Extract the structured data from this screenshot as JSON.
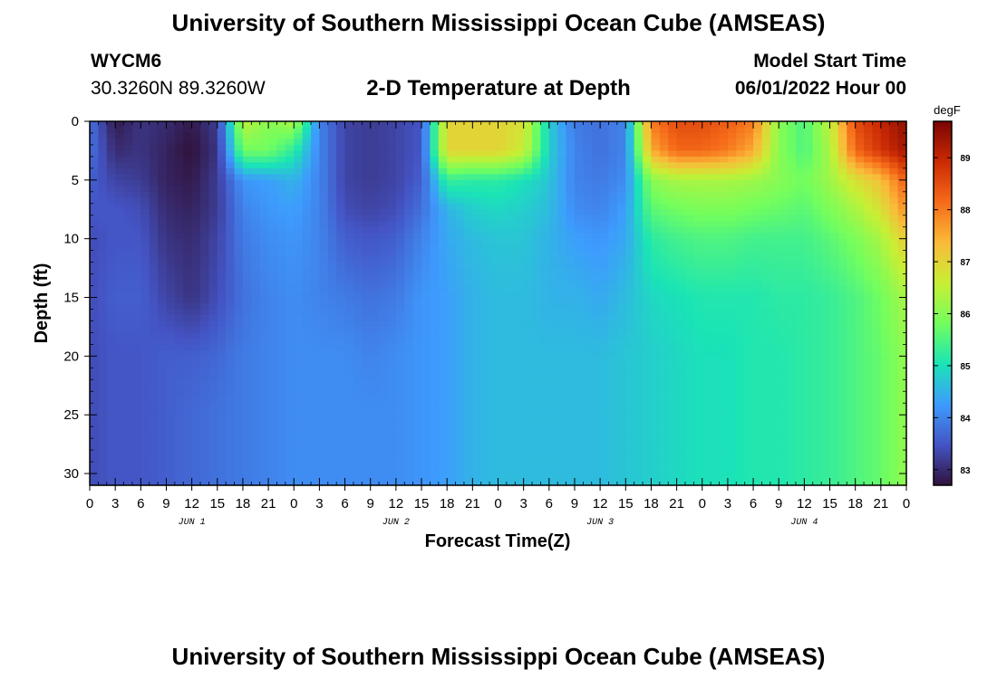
{
  "titles": {
    "main": "University of Southern Mississippi Ocean Cube (AMSEAS)",
    "repeat": "University of Southern Mississippi Ocean Cube (AMSEAS)"
  },
  "station": {
    "id": "WYCM6",
    "coords": "30.3260N  89.3260W"
  },
  "model": {
    "label": "Model Start Time",
    "start": "06/01/2022 Hour 00"
  },
  "chart_data": {
    "type": "heatmap",
    "title": "2-D Temperature at Depth",
    "xlabel": "Forecast Time(Z)",
    "ylabel": "Depth (ft)",
    "x_range_hours": [
      0,
      96
    ],
    "x_tick_labels": [
      "0",
      "3",
      "6",
      "9",
      "12",
      "15",
      "18",
      "21",
      "0",
      "3",
      "6",
      "9",
      "12",
      "15",
      "18",
      "21",
      "0",
      "3",
      "6",
      "9",
      "12",
      "15",
      "18",
      "21",
      "0",
      "3",
      "6",
      "9",
      "12",
      "15",
      "18",
      "21",
      "0"
    ],
    "day_labels": [
      "JUN 1",
      "JUN 2",
      "JUN 3",
      "JUN 4"
    ],
    "y_range_ft": [
      0,
      31
    ],
    "y_ticks": [
      0,
      5,
      10,
      15,
      20,
      25,
      30
    ],
    "colorbar": {
      "unit": "degF",
      "range": [
        82.7,
        89.7
      ],
      "ticks": [
        83,
        84,
        85,
        86,
        87,
        88,
        89
      ],
      "stops": [
        "#30123b",
        "#4454c4",
        "#3e9bfe",
        "#1ae4b6",
        "#72fe5e",
        "#c8ef34",
        "#faba39",
        "#f66b19",
        "#cb2a04",
        "#7a0403"
      ]
    },
    "depths_ft": [
      0,
      2.5,
      5,
      7.5,
      10,
      15,
      20,
      25,
      31
    ],
    "times_h": [
      0,
      3,
      6,
      9,
      12,
      15,
      18,
      21,
      24,
      27,
      30,
      33,
      36,
      39,
      42,
      45,
      48,
      51,
      54,
      57,
      60,
      63,
      66,
      69,
      72,
      75,
      78,
      81,
      84,
      87,
      90,
      93,
      96
    ],
    "values_degF": [
      [
        83.8,
        82.8,
        83.1,
        83.0,
        82.8,
        83.2,
        86.5,
        86.0,
        86.3,
        84.0,
        83.3,
        83.2,
        83.3,
        83.5,
        87.0,
        87.0,
        87.0,
        86.8,
        84.8,
        83.9,
        83.8,
        84.0,
        88.0,
        88.5,
        88.5,
        88.3,
        88.0,
        86.0,
        85.5,
        86.5,
        88.5,
        89.0,
        89.5
      ],
      [
        83.8,
        83.0,
        83.1,
        82.9,
        82.7,
        83.1,
        85.8,
        85.8,
        85.2,
        84.0,
        83.3,
        83.2,
        83.3,
        83.5,
        87.0,
        87.0,
        87.0,
        86.6,
        84.8,
        84.0,
        83.8,
        84.0,
        87.5,
        88.2,
        88.2,
        88.0,
        87.5,
        86.0,
        85.5,
        86.3,
        88.2,
        88.8,
        89.3
      ],
      [
        83.6,
        83.3,
        83.2,
        82.9,
        82.8,
        83.2,
        84.2,
        84.3,
        84.5,
        84.0,
        83.3,
        83.2,
        83.3,
        83.6,
        85.3,
        85.2,
        85.2,
        85.0,
        84.7,
        84.0,
        83.9,
        84.1,
        86.0,
        86.3,
        86.3,
        86.3,
        86.2,
        86.0,
        85.8,
        86.2,
        86.8,
        87.3,
        88.3
      ],
      [
        83.5,
        83.5,
        83.4,
        83.0,
        82.9,
        83.2,
        84.0,
        84.2,
        84.3,
        84.0,
        83.4,
        83.3,
        83.4,
        83.8,
        84.5,
        84.8,
        84.9,
        84.8,
        84.6,
        84.1,
        84.0,
        84.3,
        85.6,
        85.8,
        85.9,
        85.9,
        85.8,
        85.7,
        85.6,
        85.9,
        86.3,
        86.8,
        87.8
      ],
      [
        83.4,
        83.5,
        83.5,
        83.1,
        83.0,
        83.3,
        83.9,
        84.1,
        84.2,
        84.0,
        83.6,
        83.5,
        83.6,
        84.0,
        84.4,
        84.6,
        84.7,
        84.7,
        84.5,
        84.3,
        84.2,
        84.4,
        85.2,
        85.4,
        85.5,
        85.5,
        85.4,
        85.4,
        85.4,
        85.6,
        85.9,
        86.3,
        87.1
      ],
      [
        83.4,
        83.6,
        83.6,
        83.3,
        83.1,
        83.4,
        83.8,
        84.0,
        84.1,
        84.0,
        83.9,
        83.8,
        83.9,
        84.2,
        84.3,
        84.5,
        84.6,
        84.6,
        84.5,
        84.5,
        84.4,
        84.6,
        84.9,
        85.0,
        85.1,
        85.1,
        85.1,
        85.2,
        85.2,
        85.3,
        85.5,
        85.8,
        86.3
      ],
      [
        83.4,
        83.5,
        83.5,
        83.6,
        83.6,
        83.7,
        83.9,
        84.0,
        84.1,
        84.1,
        84.1,
        84.0,
        84.1,
        84.2,
        84.3,
        84.5,
        84.6,
        84.6,
        84.6,
        84.6,
        84.6,
        84.7,
        84.8,
        84.9,
        85.0,
        85.0,
        85.1,
        85.1,
        85.2,
        85.3,
        85.5,
        85.7,
        86.1
      ],
      [
        83.4,
        83.5,
        83.5,
        83.6,
        83.7,
        83.8,
        83.9,
        84.0,
        84.1,
        84.1,
        84.1,
        84.1,
        84.1,
        84.2,
        84.3,
        84.5,
        84.6,
        84.6,
        84.6,
        84.6,
        84.6,
        84.7,
        84.8,
        84.9,
        85.0,
        85.0,
        85.1,
        85.1,
        85.2,
        85.3,
        85.5,
        85.7,
        86.1
      ],
      [
        83.4,
        83.5,
        83.5,
        83.6,
        83.7,
        83.8,
        83.9,
        84.0,
        84.1,
        84.1,
        84.1,
        84.1,
        84.1,
        84.2,
        84.3,
        84.5,
        84.6,
        84.6,
        84.6,
        84.6,
        84.6,
        84.7,
        84.8,
        84.9,
        85.0,
        85.0,
        85.1,
        85.1,
        85.2,
        85.3,
        85.5,
        85.7,
        86.1
      ]
    ]
  }
}
